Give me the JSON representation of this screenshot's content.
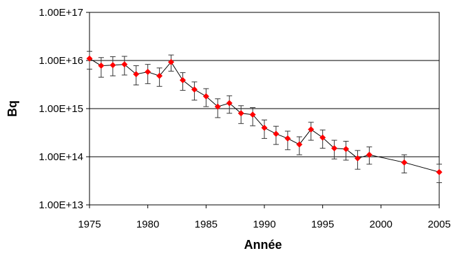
{
  "chart_data": {
    "type": "line",
    "title": "",
    "xlabel": "Année",
    "ylabel": "Bq",
    "xlim": [
      1975,
      2005
    ],
    "ylim": [
      10000000000000.0,
      1e+17
    ],
    "y_scale": "log",
    "x_ticks": [
      "1975",
      "1980",
      "1985",
      "1990",
      "1995",
      "2000",
      "2005"
    ],
    "y_ticks": [
      "1.00E+13",
      "1.00E+14",
      "1.00E+15",
      "1.00E+16",
      "1.00E+17"
    ],
    "grid": "horizontal",
    "legend": "none",
    "marker_color": "#ff0000",
    "line_color": "#000000",
    "error_bar_color": "#333333",
    "series": [
      {
        "x": [
          1975,
          1976,
          1977,
          1978,
          1979,
          1980,
          1981,
          1982,
          1983,
          1984,
          1985,
          1986,
          1987,
          1988,
          1989,
          1990,
          1991,
          1992,
          1993,
          1994,
          1995,
          1996,
          1997,
          1998,
          1999,
          2002,
          2005
        ],
        "y": [
          1.1e+16,
          7800000000000000.0,
          8000000000000000.0,
          8300000000000000.0,
          5200000000000000.0,
          5800000000000000.0,
          4800000000000000.0,
          9300000000000000.0,
          3900000000000000.0,
          2500000000000000.0,
          1800000000000000.0,
          1100000000000000.0,
          1300000000000000.0,
          800000000000000.0,
          750000000000000.0,
          400000000000000.0,
          300000000000000.0,
          240000000000000.0,
          180000000000000.0,
          370000000000000.0,
          250000000000000.0,
          150000000000000.0,
          145000000000000.0,
          93000000000000.0,
          110000000000000.0,
          76000000000000.0,
          48000000000000.0
        ],
        "y_err_low": [
          6600000000000000.0,
          4500000000000000.0,
          4800000000000000.0,
          5000000000000000.0,
          3100000000000000.0,
          3300000000000000.0,
          2900000000000000.0,
          6000000000000000.0,
          2400000000000000.0,
          1500000000000000.0,
          1100000000000000.0,
          650000000000000.0,
          800000000000000.0,
          490000000000000.0,
          440000000000000.0,
          240000000000000.0,
          180000000000000.0,
          140000000000000.0,
          110000000000000.0,
          220000000000000.0,
          150000000000000.0,
          90000000000000.0,
          85000000000000.0,
          55000000000000.0,
          70000000000000.0,
          46000000000000.0,
          29000000000000.0
        ],
        "y_err_high": [
          1.55e+16,
          1.15e+16,
          1.2e+16,
          1.22e+16,
          7800000000000000.0,
          8300000000000000.0,
          7000000000000000.0,
          1.3e+16,
          5600000000000000.0,
          3600000000000000.0,
          2600000000000000.0,
          1600000000000000.0,
          1850000000000000.0,
          1150000000000000.0,
          1050000000000000.0,
          580000000000000.0,
          430000000000000.0,
          340000000000000.0,
          260000000000000.0,
          520000000000000.0,
          360000000000000.0,
          220000000000000.0,
          210000000000000.0,
          135000000000000.0,
          160000000000000.0,
          110000000000000.0,
          70000000000000.0
        ]
      }
    ]
  }
}
